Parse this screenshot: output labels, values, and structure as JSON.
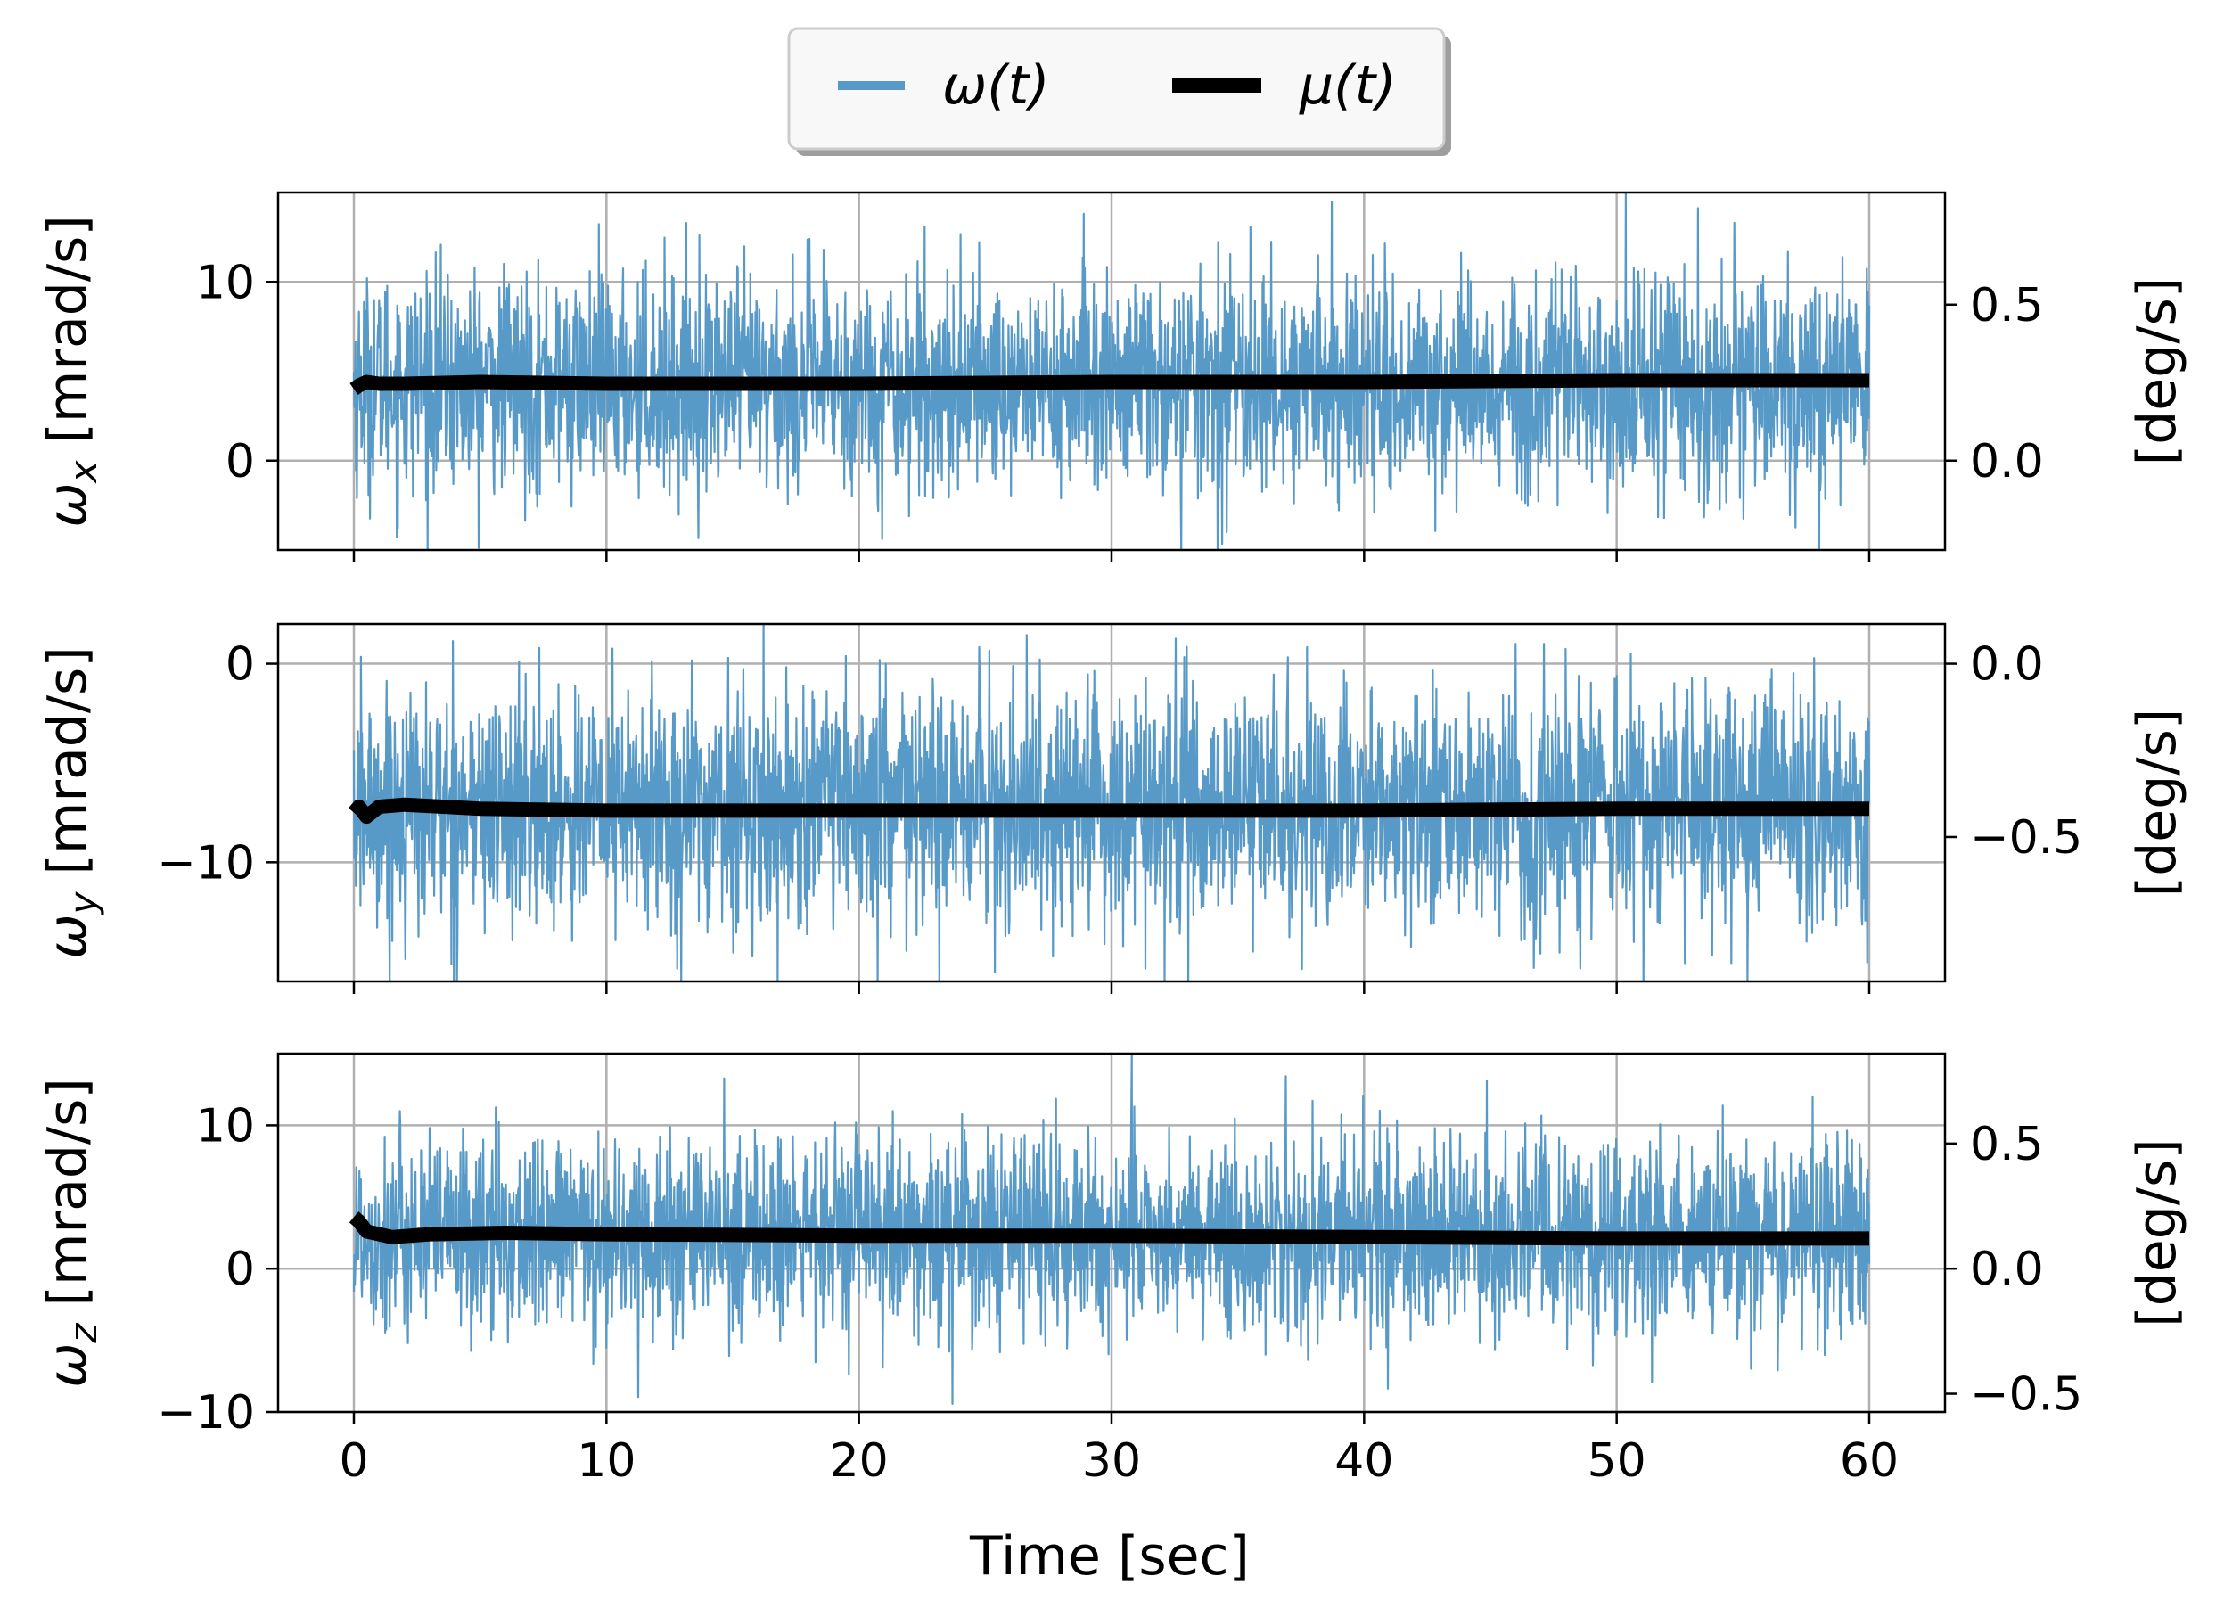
{
  "legend": {
    "entries": [
      {
        "label": "ω(t)",
        "color": "#5799c7",
        "style": "thin-line"
      },
      {
        "label": "μ(t)",
        "color": "#000000",
        "style": "thick-line"
      }
    ]
  },
  "colors": {
    "signal": "#5799c7",
    "mean": "#000000",
    "grid": "#b0b0b0"
  },
  "xlabel": "Time [sec]",
  "chart_data": [
    {
      "type": "line",
      "panel": "x",
      "ylabel_symbol": "ω",
      "ylabel_sub": "x",
      "ylabel_unit": " [mrad/s]",
      "right_label": "[deg/s]",
      "xlim": [
        -3,
        63
      ],
      "ylim": [
        -5,
        15
      ],
      "xticks": [
        0,
        10,
        20,
        30,
        40,
        50,
        60
      ],
      "yticks": [
        0,
        10
      ],
      "ytick_labels": [
        "0",
        "10"
      ],
      "right_ticks": [
        0.0,
        0.5
      ],
      "right_tick_labels": [
        "0.0",
        "0.5"
      ],
      "rad_to_deg": 0.0572958,
      "grid": true,
      "series": [
        {
          "name": "ω(t)",
          "signal": {
            "t_start": 0,
            "t_end": 60,
            "mean": 4.3,
            "std": 3.0,
            "min": -5,
            "max": 15
          }
        },
        {
          "name": "μ(t)",
          "x": [
            0,
            0.2,
            0.5,
            1,
            2,
            5,
            10,
            20,
            30,
            40,
            50,
            60
          ],
          "y": [
            4.0,
            4.2,
            4.4,
            4.3,
            4.3,
            4.4,
            4.3,
            4.3,
            4.4,
            4.4,
            4.5,
            4.5
          ]
        }
      ]
    },
    {
      "type": "line",
      "panel": "y",
      "ylabel_symbol": "ω",
      "ylabel_sub": "y",
      "ylabel_unit": " [mrad/s]",
      "right_label": "[deg/s]",
      "xlim": [
        -3,
        63
      ],
      "ylim": [
        -16,
        2
      ],
      "xticks": [
        0,
        10,
        20,
        30,
        40,
        50,
        60
      ],
      "yticks": [
        -10,
        0
      ],
      "ytick_labels": [
        "−10",
        "0"
      ],
      "right_ticks": [
        -0.5,
        0.0
      ],
      "right_tick_labels": [
        "−0.5",
        "0.0"
      ],
      "rad_to_deg": 0.0572958,
      "grid": true,
      "series": [
        {
          "name": "ω(t)",
          "signal": {
            "t_start": 0,
            "t_end": 60,
            "mean": -7.3,
            "std": 3.0,
            "min": -16,
            "max": 2
          }
        },
        {
          "name": "μ(t)",
          "x": [
            0,
            0.2,
            0.5,
            1,
            2,
            5,
            10,
            20,
            30,
            40,
            50,
            60
          ],
          "y": [
            -7.5,
            -7.2,
            -7.7,
            -7.2,
            -7.1,
            -7.3,
            -7.4,
            -7.4,
            -7.4,
            -7.4,
            -7.3,
            -7.3
          ]
        }
      ]
    },
    {
      "type": "line",
      "panel": "z",
      "ylabel_symbol": "ω",
      "ylabel_sub": "z",
      "ylabel_unit": " [mrad/s]",
      "right_label": "[deg/s]",
      "xlim": [
        -3,
        63
      ],
      "ylim": [
        -10,
        15
      ],
      "xticks": [
        0,
        10,
        20,
        30,
        40,
        50,
        60
      ],
      "xtick_labels": [
        "0",
        "10",
        "20",
        "30",
        "40",
        "50",
        "60"
      ],
      "yticks": [
        -10,
        0,
        10
      ],
      "ytick_labels": [
        "−10",
        "0",
        "10"
      ],
      "right_ticks": [
        -0.5,
        0.0,
        0.5
      ],
      "right_tick_labels": [
        "−0.5",
        "0.0",
        "0.5"
      ],
      "rad_to_deg": 0.0572958,
      "grid": true,
      "series": [
        {
          "name": "ω(t)",
          "signal": {
            "t_start": 0,
            "t_end": 60,
            "mean": 2.3,
            "std": 3.4,
            "min": -10,
            "max": 15
          }
        },
        {
          "name": "μ(t)",
          "x": [
            0,
            0.2,
            0.5,
            1,
            1.5,
            3,
            6,
            10,
            20,
            30,
            40,
            50,
            60
          ],
          "y": [
            3.6,
            3.3,
            2.6,
            2.4,
            2.2,
            2.4,
            2.5,
            2.4,
            2.3,
            2.3,
            2.2,
            2.1,
            2.1
          ]
        }
      ]
    }
  ]
}
